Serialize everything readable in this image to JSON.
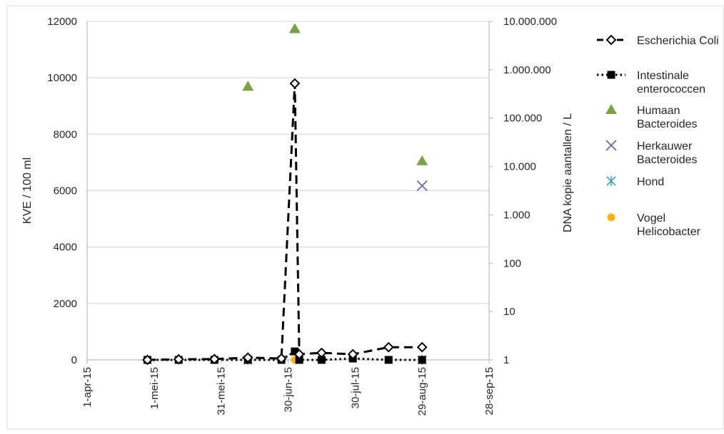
{
  "chart_data": {
    "type": "line",
    "x_axis": {
      "ticks": [
        "1-apr-15",
        "1-mei-15",
        "31-mei-15",
        "30-jun-15",
        "30-jul-15",
        "29-aug-15",
        "28-sep-15"
      ],
      "tick_dates": [
        "2015-04-01",
        "2015-05-01",
        "2015-05-31",
        "2015-06-30",
        "2015-07-30",
        "2015-08-29",
        "2015-09-28"
      ],
      "range": [
        "2015-04-01",
        "2015-09-28"
      ]
    },
    "y_left": {
      "label": "KVE / 100 ml",
      "range": [
        0,
        12000
      ],
      "ticks": [
        "0",
        "2000",
        "4000",
        "6000",
        "8000",
        "10000",
        "12000"
      ]
    },
    "y_right": {
      "label": "DNA kopie aantallen / L",
      "scale": "log",
      "range": [
        1,
        10000000
      ],
      "ticks": [
        "1",
        "10",
        "100",
        "1.000",
        "10.000",
        "100.000",
        "1.000.000",
        "10.000.000"
      ]
    },
    "grid": "horizontal",
    "legend_position": "right",
    "series": [
      {
        "name": "Escherichia Coli",
        "axis": "left",
        "style": "dashed",
        "marker": "open-diamond",
        "color": "#000000",
        "x": [
          "2015-04-28",
          "2015-05-12",
          "2015-05-28",
          "2015-06-12",
          "2015-06-27",
          "2015-07-03",
          "2015-07-05",
          "2015-07-15",
          "2015-07-29",
          "2015-08-14",
          "2015-08-29"
        ],
        "y": [
          0,
          20,
          30,
          80,
          50,
          9800,
          200,
          250,
          200,
          450,
          450
        ]
      },
      {
        "name": "Intestinale enterococcen",
        "axis": "left",
        "style": "dotted",
        "marker": "filled-square",
        "color": "#000000",
        "x": [
          "2015-04-28",
          "2015-05-12",
          "2015-05-28",
          "2015-06-12",
          "2015-06-27",
          "2015-07-03",
          "2015-07-05",
          "2015-07-15",
          "2015-07-29",
          "2015-08-14",
          "2015-08-29"
        ],
        "y": [
          0,
          0,
          0,
          0,
          0,
          300,
          0,
          0,
          50,
          0,
          0
        ]
      },
      {
        "name": "Humaan Bacteroides",
        "axis": "right",
        "style": "markers",
        "marker": "triangle",
        "color": "#77a343",
        "x": [
          "2015-06-12",
          "2015-07-03",
          "2015-08-29"
        ],
        "y": [
          450000,
          7000000,
          13000
        ]
      },
      {
        "name": "Herkauwer Bacteroides",
        "axis": "right",
        "style": "markers",
        "marker": "x",
        "color": "#7b60b0",
        "x": [
          "2015-08-29"
        ],
        "y": [
          4000
        ]
      },
      {
        "name": "Hond",
        "axis": "right",
        "style": "markers",
        "marker": "asterisk",
        "color": "#39a0c9",
        "x": [
          "2015-06-12",
          "2015-08-29"
        ],
        "y": [
          1,
          1
        ]
      },
      {
        "name": "Vogel Helicobacter",
        "axis": "right",
        "style": "markers",
        "marker": "dot",
        "color": "#ffb300",
        "x": [
          "2015-06-12",
          "2015-07-03",
          "2015-08-29"
        ],
        "y": [
          1,
          1,
          1
        ]
      }
    ],
    "legend": [
      {
        "lines": [
          "Escherichia Coli"
        ],
        "series_index": 0
      },
      {
        "lines": [
          "Intestinale",
          "enterococcen"
        ],
        "series_index": 1
      },
      {
        "lines": [
          "Humaan",
          "Bacteroides"
        ],
        "series_index": 2
      },
      {
        "lines": [
          "Herkauwer",
          "Bacteroides"
        ],
        "series_index": 3
      },
      {
        "lines": [
          "Hond"
        ],
        "series_index": 4
      },
      {
        "lines": [
          "Vogel",
          "Helicobacter"
        ],
        "series_index": 5
      }
    ]
  }
}
